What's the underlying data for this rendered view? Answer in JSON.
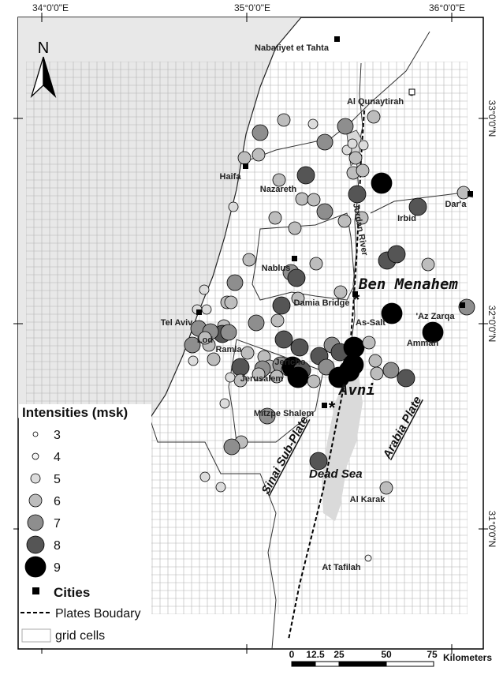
{
  "coordinates": {
    "lon_labels": [
      "34°0'0\"E",
      "35°0'0\"E",
      "36°0'0\"E"
    ],
    "lat_labels": [
      "33°0'0\"N",
      "32°0'0\"N",
      "31°0'0\"N"
    ]
  },
  "north_arrow": {
    "label": "N"
  },
  "cities": [
    "Nabatiyet et Tahta",
    "Al Qunaytirah",
    "Haifa",
    "Nazareth",
    "Dar'a",
    "Irbid",
    "Nablus",
    "Damia Bridge",
    "Tel Aviv",
    "Lod",
    "Ramla",
    "As-Salt",
    "'Az Zarqa",
    "Amman",
    "Jericho",
    "Jerusalem",
    "Mitzpe Shalem",
    "Al Karak",
    "At Tafilah"
  ],
  "feature_labels": {
    "jordan_river": "Jordan River",
    "dead_sea": "Dead Sea",
    "sinai_plate": "Sinai Sub-Plate",
    "arabia_plate": "Arabia Plate",
    "ben_menahem": "Ben Menahem",
    "avni": "Avni"
  },
  "legend": {
    "title": "Intensities (msk)",
    "intensities": [
      "3",
      "4",
      "5",
      "6",
      "7",
      "8",
      "9"
    ],
    "cities_label": "Cities",
    "boundary_label": "Plates Boudary",
    "grid_label": "grid cells"
  },
  "scale_bar": {
    "ticks": [
      "0",
      "12.5",
      "25",
      "50",
      "75"
    ],
    "unit": "Kilometers"
  },
  "colors": {
    "intensity_3": "#ffffff",
    "intensity_4": "#f4f4f4",
    "intensity_5": "#dcdcdc",
    "intensity_6": "#bdbdbd",
    "intensity_7": "#8e8e8e",
    "intensity_8": "#555555",
    "intensity_9": "#000000",
    "sea": "#e8e8e8",
    "dead_sea": "#dadada",
    "grid": "#b4b4b4"
  }
}
